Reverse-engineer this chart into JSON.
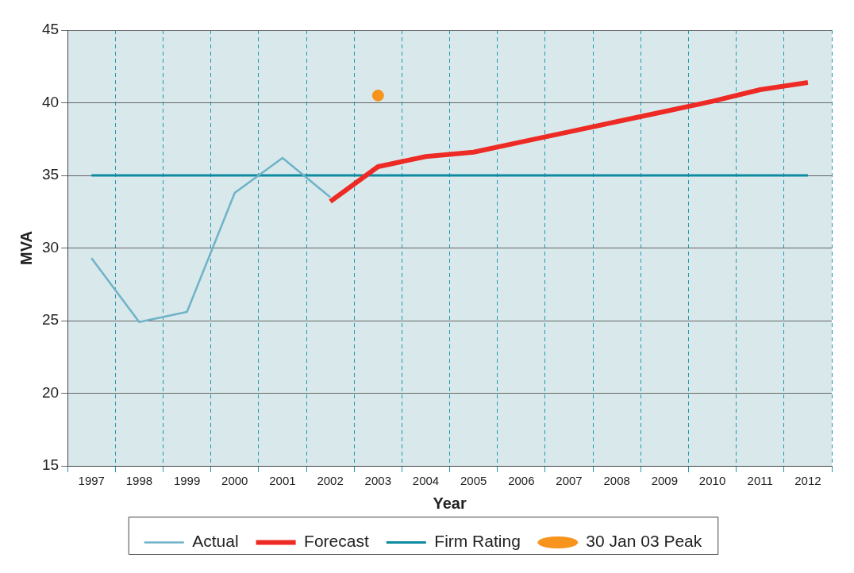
{
  "chart_data": {
    "type": "line",
    "xlabel": "Year",
    "ylabel": "MVA",
    "categories": [
      "1997",
      "1998",
      "1999",
      "2000",
      "2001",
      "2002",
      "2003",
      "2004",
      "2005",
      "2006",
      "2007",
      "2008",
      "2009",
      "2010",
      "2011",
      "2012"
    ],
    "series": [
      {
        "name": "Actual",
        "color": "#6fb3c8",
        "values": [
          29.3,
          24.9,
          25.6,
          33.8,
          36.2,
          33.5,
          null,
          null,
          null,
          null,
          null,
          null,
          null,
          null,
          null,
          null
        ]
      },
      {
        "name": "Forecast",
        "color": "#ee2a24",
        "values": [
          null,
          null,
          null,
          null,
          null,
          33.2,
          35.6,
          36.3,
          36.6,
          37.3,
          38.0,
          38.7,
          39.4,
          40.1,
          40.9,
          41.4
        ]
      },
      {
        "name": "Firm Rating",
        "color": "#0e8ba0",
        "values": [
          35,
          35,
          35,
          35,
          35,
          35,
          35,
          35,
          35,
          35,
          35,
          35,
          35,
          35,
          35,
          35
        ]
      },
      {
        "name": "30 Jan 03 Peak",
        "type": "scatter",
        "marker": "circle",
        "color": "#f7941d",
        "values": [
          null,
          null,
          null,
          null,
          null,
          null,
          40.5,
          null,
          null,
          null,
          null,
          null,
          null,
          null,
          null,
          null
        ]
      }
    ],
    "ylim": [
      15,
      45
    ],
    "yticks": [
      15,
      20,
      25,
      30,
      35,
      40,
      45
    ],
    "grid": true,
    "legend": "bottom"
  }
}
